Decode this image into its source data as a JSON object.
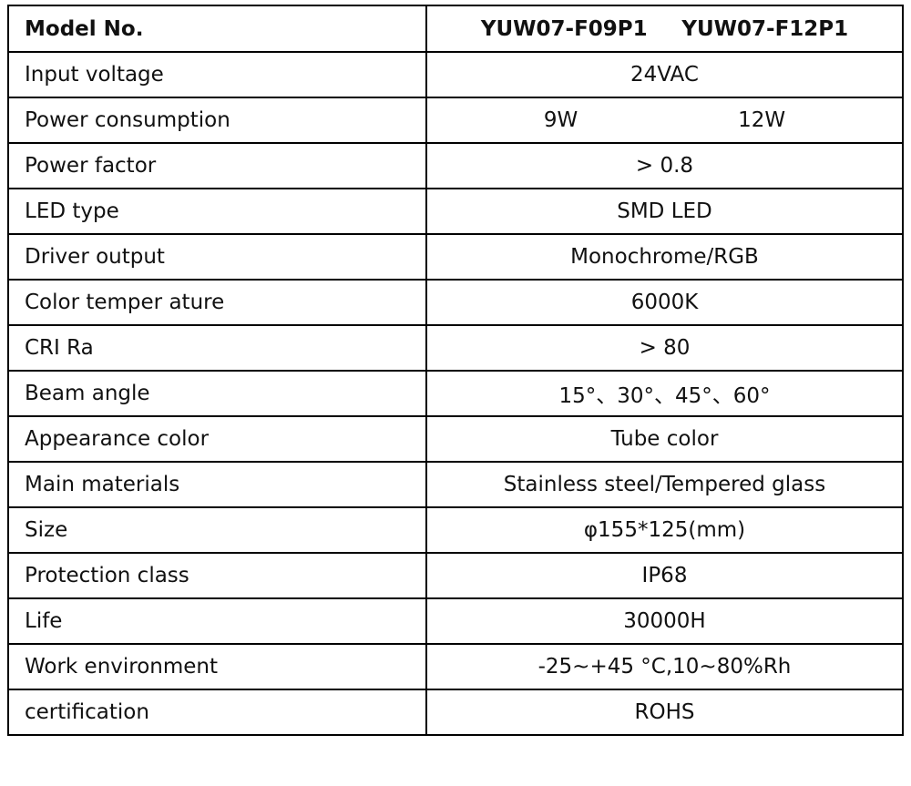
{
  "header": {
    "label": "Model No.",
    "models": [
      "YUW07-F09P1",
      "YUW07-F12P1"
    ]
  },
  "rows": [
    {
      "label": "Input voltage",
      "values": [
        "24VAC"
      ]
    },
    {
      "label": "Power consumption",
      "values": [
        "9W",
        "12W"
      ]
    },
    {
      "label": "Power factor",
      "values": [
        "> 0.8"
      ]
    },
    {
      "label": "LED type",
      "values": [
        "SMD LED"
      ]
    },
    {
      "label": "Driver output",
      "values": [
        "Monochrome/RGB"
      ]
    },
    {
      "label": "Color temper ature",
      "values": [
        "6000K"
      ]
    },
    {
      "label": "CRI Ra",
      "values": [
        "> 80"
      ]
    },
    {
      "label": "Beam angle",
      "values": [
        "15°、30°、45°、60°"
      ]
    },
    {
      "label": "Appearance color",
      "values": [
        "Tube color"
      ]
    },
    {
      "label": "Main materials",
      "values": [
        "Stainless steel/Tempered glass"
      ]
    },
    {
      "label": "Size",
      "values": [
        "φ155*125(mm)"
      ]
    },
    {
      "label": "Protection class",
      "values": [
        "IP68"
      ]
    },
    {
      "label": "Life",
      "values": [
        "30000H"
      ]
    },
    {
      "label": "Work environment",
      "values": [
        "-25~+45 °C,10~80%Rh"
      ]
    },
    {
      "label": "certification",
      "values": [
        "ROHS"
      ]
    }
  ]
}
